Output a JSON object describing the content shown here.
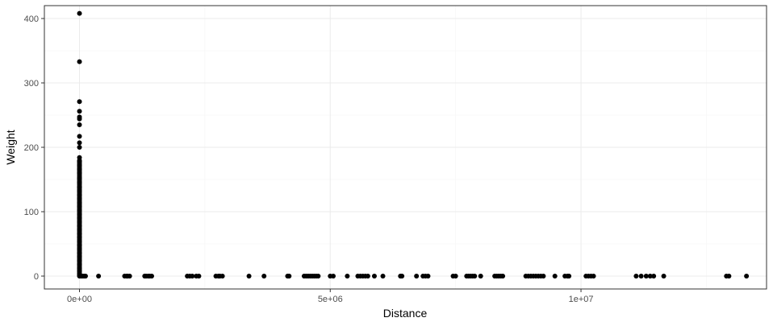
{
  "chart_data": {
    "type": "scatter",
    "title": "",
    "xlabel": "Distance",
    "ylabel": "Weight",
    "xlim": [
      -700000,
      13700000
    ],
    "ylim": [
      -20,
      420
    ],
    "grid": true,
    "x_ticks": [
      0,
      5000000,
      10000000
    ],
    "x_tick_labels": [
      "0e+00",
      "5e+06",
      "1e+07"
    ],
    "y_ticks": [
      0,
      100,
      200,
      300,
      400
    ],
    "y_tick_labels": [
      "0",
      "100",
      "200",
      "300",
      "400"
    ],
    "colors": {
      "point": "#000000",
      "panel_border": "#333333",
      "grid_major": "#ebebeb",
      "grid_minor": "#f5f5f5"
    },
    "points_near_zero_distance": {
      "x": 0,
      "y": [
        408,
        333,
        271,
        256,
        247,
        244,
        235,
        217,
        207,
        200,
        184,
        178,
        172,
        166,
        160,
        152,
        145,
        138,
        132,
        126,
        120,
        114,
        108,
        102,
        96,
        90,
        84,
        78,
        72,
        66,
        60,
        54,
        48,
        42,
        36,
        30,
        24,
        18,
        12,
        8,
        4,
        1,
        0
      ]
    },
    "points_zero_weight": {
      "y": 0,
      "x": [
        30000,
        60000,
        90000,
        120000,
        380000,
        900000,
        940000,
        960000,
        1000000,
        1300000,
        1330000,
        1370000,
        1400000,
        1440000,
        2150000,
        2200000,
        2250000,
        2330000,
        2380000,
        2720000,
        2770000,
        2800000,
        2850000,
        3380000,
        3680000,
        4150000,
        4180000,
        4480000,
        4520000,
        4560000,
        4600000,
        4640000,
        4680000,
        4720000,
        4760000,
        5000000,
        5060000,
        5340000,
        5550000,
        5600000,
        5650000,
        5700000,
        5750000,
        5880000,
        6050000,
        6400000,
        6430000,
        6720000,
        6850000,
        6900000,
        6950000,
        7450000,
        7500000,
        7720000,
        7760000,
        7800000,
        7840000,
        7880000,
        8000000,
        8280000,
        8320000,
        8360000,
        8400000,
        8440000,
        8900000,
        8950000,
        9000000,
        9050000,
        9100000,
        9150000,
        9200000,
        9250000,
        9480000,
        9680000,
        9730000,
        9760000,
        10100000,
        10150000,
        10200000,
        10250000,
        11100000,
        11200000,
        11300000,
        11380000,
        11450000,
        11650000,
        12900000,
        12950000,
        13300000
      ]
    }
  }
}
